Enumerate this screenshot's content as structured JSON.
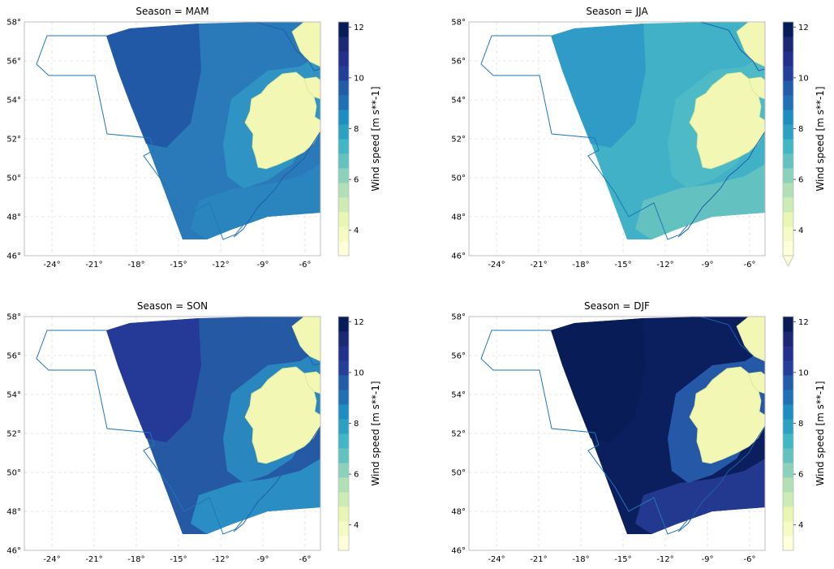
{
  "figure": {
    "panels": [
      {
        "title": "Season = MAM",
        "colorbar_label": "Wind speed [m s**-1]",
        "colorbar_ticks": [
          "4",
          "6",
          "8",
          "10",
          "12"
        ],
        "extend_min": false,
        "colors": {
          "background": "#2a7ab9",
          "hot_zone": "#2259a6",
          "coast_band": "#2f94c3",
          "south": "#2a85bf"
        }
      },
      {
        "title": "Season = JJA",
        "colorbar_label": "Wind speed [m s**-1]",
        "colorbar_ticks": [
          "4",
          "6",
          "8",
          "10",
          "12"
        ],
        "extend_min": true,
        "colors": {
          "background": "#41b1c7",
          "hot_zone": "#2f9bc6",
          "coast_band": "#4ebac5",
          "south": "#63c1c0"
        }
      },
      {
        "title": "Season = SON",
        "colorbar_label": "Wind speed [m s**-1]",
        "colorbar_ticks": [
          "4",
          "6",
          "8",
          "10",
          "12"
        ],
        "extend_min": false,
        "colors": {
          "background": "#2559a4",
          "hot_zone": "#253996",
          "coast_band": "#2a86be",
          "south": "#2a8dc3"
        }
      },
      {
        "title": "Season = DJF",
        "colorbar_label": "Wind speed [m s**-1]",
        "colorbar_ticks": [
          "4",
          "6",
          "8",
          "10",
          "12"
        ],
        "extend_min": false,
        "colors": {
          "background": "#0b1f5e",
          "hot_zone": "#081d58",
          "coast_band": "#2558a6",
          "south": "#23398f"
        }
      }
    ],
    "x_ticks": [
      "-24°",
      "-21°",
      "-18°",
      "-15°",
      "-12°",
      "-9°",
      "-6°"
    ],
    "y_ticks": [
      "46°",
      "48°",
      "50°",
      "52°",
      "54°",
      "56°",
      "58°"
    ],
    "colorbar_colors": [
      "#ffffd9",
      "#f5fbc3",
      "#e8f6b1",
      "#cdebb4",
      "#b1e0b6",
      "#8bd1bb",
      "#63c1c0",
      "#41b6c4",
      "#2ca1c1",
      "#1e8dbf",
      "#2070b4",
      "#225ea8",
      "#243f9a",
      "#23308c",
      "#1b2873",
      "#081d58"
    ],
    "land_color": "#f2f7b3"
  }
}
